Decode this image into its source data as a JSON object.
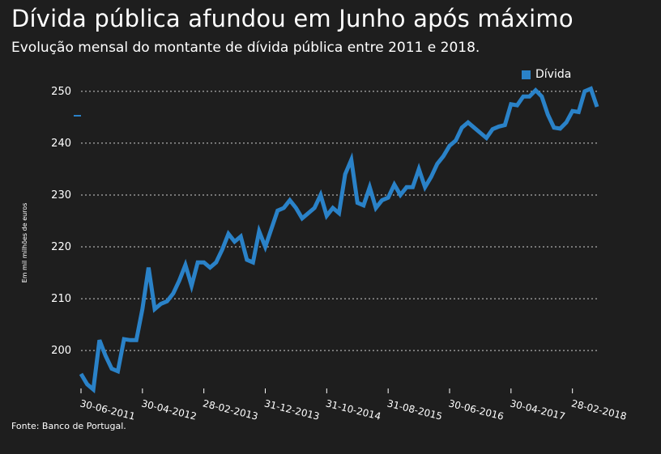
{
  "header": {
    "title": "Dívida pública afundou em Junho após máximo",
    "subtitle": "Evolução mensal do montante de dívida pública entre 2011 e 2018."
  },
  "footer": {
    "source": "Fonte: Banco de Portugal."
  },
  "colors": {
    "background": "#1e1e1e",
    "series": "#2a82c8",
    "grid": "#cfcfcf",
    "text": "#ffffff"
  },
  "chart_data": {
    "type": "line",
    "ylabel": "Em mil milhões de euros",
    "ylim": [
      193,
      252
    ],
    "yticks": [
      200,
      210,
      220,
      230,
      240,
      250
    ],
    "xtick_labels": [
      "30-06-2011",
      "30-04-2012",
      "28-02-2013",
      "31-12-2013",
      "31-10-2014",
      "31-08-2015",
      "30-06-2016",
      "30-04-2017",
      "28-02-2018"
    ],
    "grid": true,
    "legend_position": "top-right",
    "series": [
      {
        "name": "Dívida",
        "x": [
          "2011-06",
          "2011-07",
          "2011-08",
          "2011-09",
          "2011-10",
          "2011-11",
          "2011-12",
          "2012-01",
          "2012-02",
          "2012-03",
          "2012-04",
          "2012-05",
          "2012-06",
          "2012-07",
          "2012-08",
          "2012-09",
          "2012-10",
          "2012-11",
          "2012-12",
          "2013-01",
          "2013-02",
          "2013-03",
          "2013-04",
          "2013-05",
          "2013-06",
          "2013-07",
          "2013-08",
          "2013-09",
          "2013-10",
          "2013-11",
          "2013-12",
          "2014-01",
          "2014-02",
          "2014-03",
          "2014-04",
          "2014-05",
          "2014-06",
          "2014-07",
          "2014-08",
          "2014-09",
          "2014-10",
          "2014-11",
          "2014-12",
          "2015-01",
          "2015-02",
          "2015-03",
          "2015-04",
          "2015-05",
          "2015-06",
          "2015-07",
          "2015-08",
          "2015-09",
          "2015-10",
          "2015-11",
          "2015-12",
          "2016-01",
          "2016-02",
          "2016-03",
          "2016-04",
          "2016-05",
          "2016-06",
          "2016-07",
          "2016-08",
          "2016-09",
          "2016-10",
          "2016-11",
          "2016-12",
          "2017-01",
          "2017-02",
          "2017-03",
          "2017-04",
          "2017-05",
          "2017-06",
          "2017-07",
          "2017-08",
          "2017-09",
          "2017-10",
          "2017-11",
          "2017-12",
          "2018-01",
          "2018-02",
          "2018-03",
          "2018-04",
          "2018-05",
          "2018-06"
        ],
        "values": [
          195.5,
          193.5,
          192.5,
          202,
          199,
          196.5,
          196,
          202.2,
          202,
          202,
          208,
          216,
          208,
          209,
          209.5,
          211,
          213.5,
          216.5,
          212.5,
          217,
          217,
          216,
          217,
          219.5,
          222.5,
          221,
          222,
          217.5,
          217,
          223,
          220,
          223.5,
          227,
          227.5,
          229,
          227.5,
          225.5,
          226.5,
          227.5,
          230,
          226,
          227.5,
          226.5,
          234,
          236.8,
          228.5,
          228,
          231.5,
          227.5,
          229,
          229.5,
          232,
          230,
          231.5,
          231.5,
          235,
          231.5,
          233.5,
          236,
          237.5,
          239.5,
          240.5,
          243,
          244,
          243,
          242,
          241,
          242.7,
          243.2,
          243.5,
          247.5,
          247.3,
          249,
          249,
          250.2,
          249,
          245.5,
          243,
          242.8,
          244,
          246.2,
          246,
          250,
          250.5,
          247
        ]
      }
    ]
  }
}
